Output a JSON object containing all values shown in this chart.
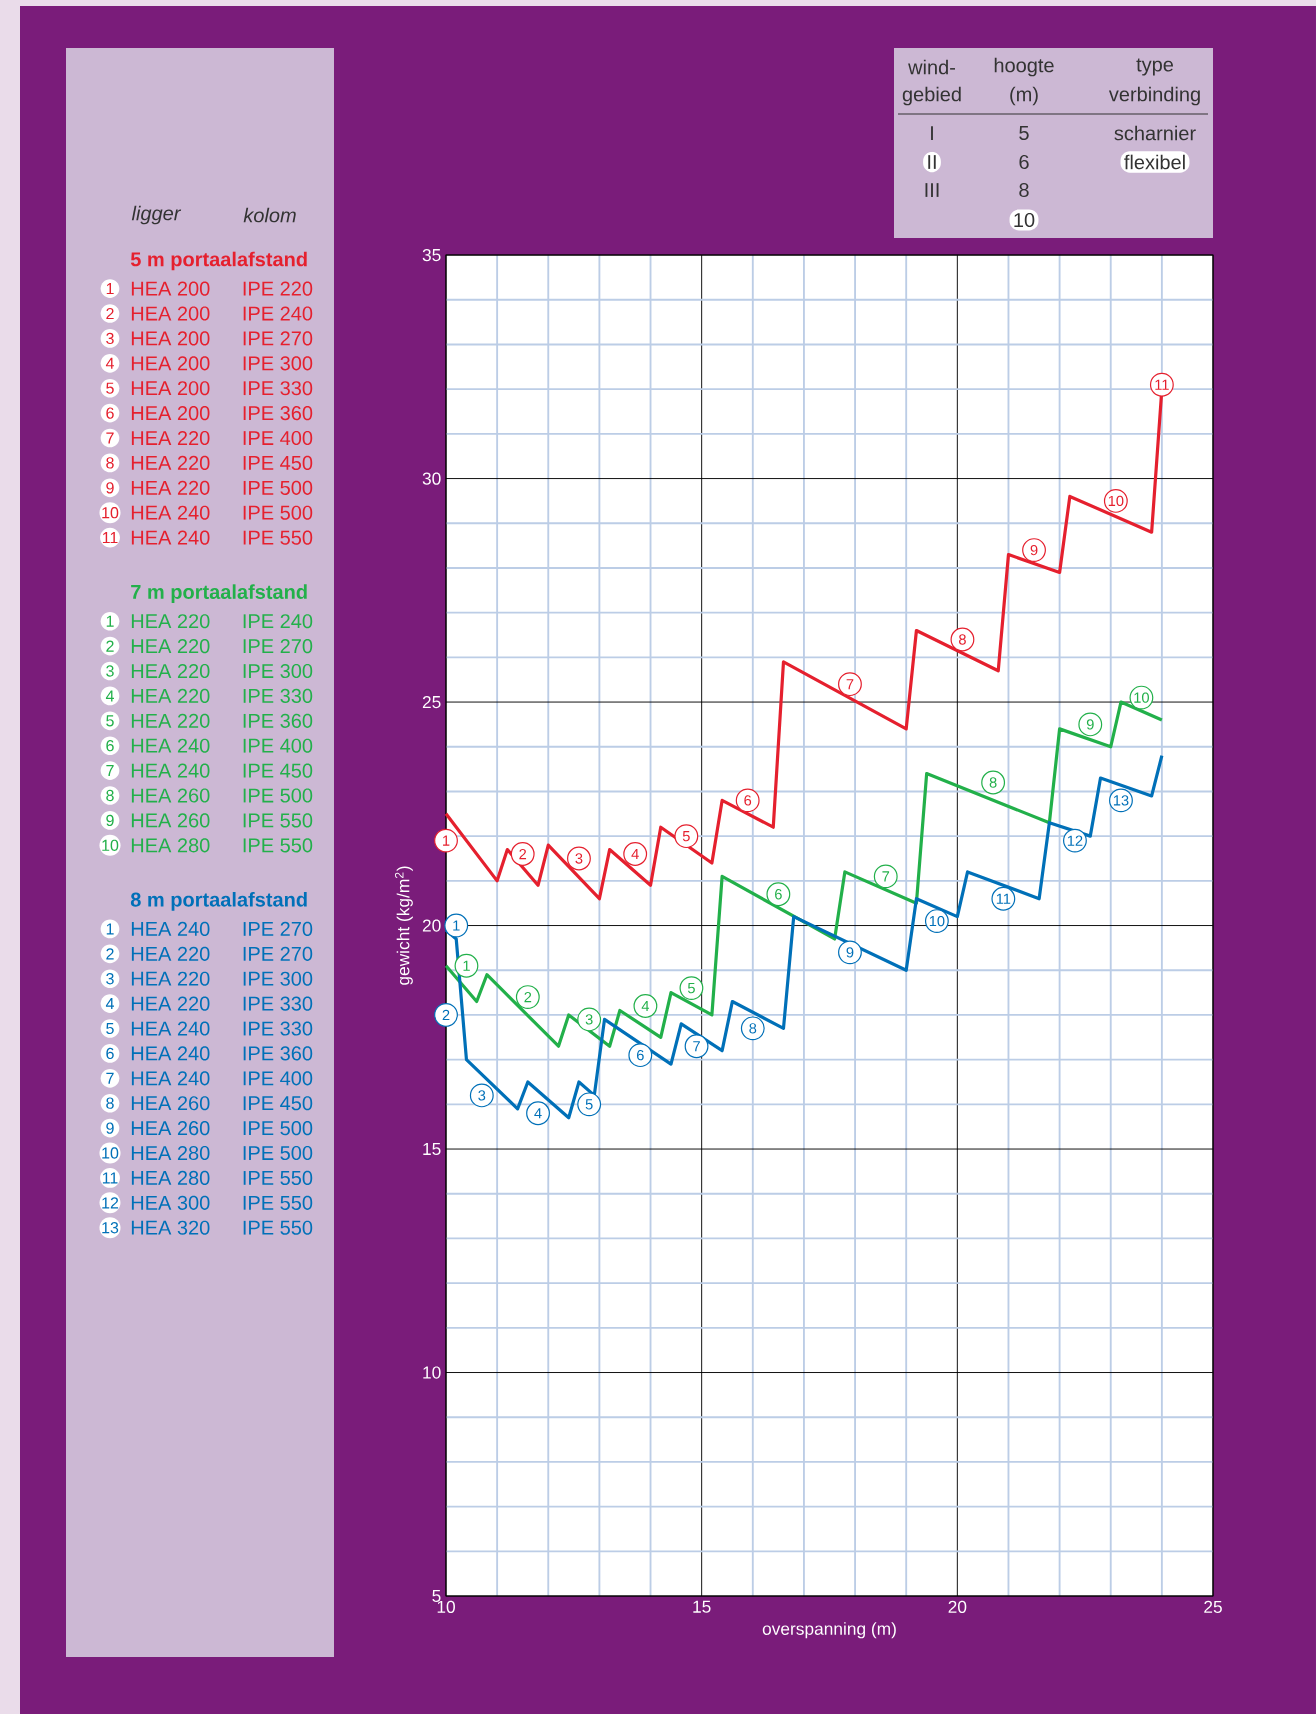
{
  "chart_data": [
    {
      "type": "line",
      "xlabel": "overspanning (m)",
      "ylabel": "gewicht (kg/m$^{2}$)",
      "xlim": [
        10,
        25
      ],
      "ylim": [
        5,
        35
      ],
      "xticks": [
        10,
        {
          "value": 11,
          "label": null
        },
        {
          "value": 12,
          "label": null
        },
        {
          "value": 13,
          "label": null
        },
        {
          "value": 14,
          "label": null
        },
        15,
        {
          "value": 16,
          "label": null
        },
        {
          "value": 17,
          "label": null
        },
        {
          "value": 18,
          "label": null
        },
        {
          "value": 19,
          "label": null
        },
        20,
        {
          "value": 21,
          "label": null
        },
        {
          "value": 22,
          "label": null
        },
        {
          "value": 23,
          "label": null
        },
        {
          "value": 24,
          "label": null
        },
        25
      ],
      "yticks": [
        5,
        {
          "value": 6,
          "label": null
        },
        {
          "value": 7,
          "label": null
        },
        {
          "value": 8,
          "label": null
        },
        {
          "value": 9,
          "label": null
        },
        10,
        {
          "value": 11,
          "label": null
        },
        {
          "value": 12,
          "label": null
        },
        {
          "value": 13,
          "label": null
        },
        {
          "value": 14,
          "label": null
        },
        15,
        {
          "value": 16,
          "label": null
        },
        {
          "value": 17,
          "label": null
        },
        {
          "value": 18,
          "label": null
        },
        {
          "value": 19,
          "label": null
        },
        20,
        {
          "value": 21,
          "label": null
        },
        {
          "value": 22,
          "label": null
        },
        {
          "value": 23,
          "label": null
        },
        {
          "value": 24,
          "label": null
        },
        25,
        {
          "value": 26,
          "label": null
        },
        {
          "value": 27,
          "label": null
        },
        {
          "value": 28,
          "label": null
        },
        {
          "value": 29,
          "label": null
        },
        30,
        {
          "value": 31,
          "label": null
        },
        {
          "value": 32,
          "label": null
        },
        {
          "value": 33,
          "label": null
        },
        {
          "value": 34,
          "label": null
        },
        35
      ],
      "grid": true,
      "legend": "left",
      "series": [
        {
          "name": "5 m portaalafstand",
          "color": "#e5202e",
          "x": [
            10,
            11,
            11.2,
            11.8,
            12,
            13,
            13.2,
            14,
            14.2,
            15.2,
            15.4,
            16.4,
            16.6,
            19,
            19.2,
            20.8,
            21,
            22,
            22.2,
            23.8,
            24
          ],
          "values": [
            22.5,
            21,
            21.7,
            20.9,
            21.8,
            20.6,
            21.7,
            20.9,
            22.2,
            21.4,
            22.8,
            22.2,
            25.9,
            24.4,
            26.6,
            25.7,
            28.3,
            27.9,
            29.6,
            28.8,
            32.0
          ]
        },
        {
          "name": "7 m portaalafstand",
          "color": "#22b04a",
          "x": [
            10,
            10.6,
            10.8,
            12.2,
            12.4,
            13.2,
            13.4,
            14.2,
            14.4,
            15.2,
            15.4,
            17.6,
            17.8,
            19.2,
            19.4,
            21.8,
            22,
            23,
            23.2,
            24
          ],
          "values": [
            19.1,
            18.3,
            18.9,
            17.3,
            18,
            17.3,
            18.1,
            17.5,
            18.5,
            18,
            21.1,
            19.7,
            21.2,
            20.5,
            23.4,
            22.3,
            24.4,
            24,
            25,
            24.6
          ]
        },
        {
          "name": "8 m portaalafstand",
          "color": "#0070b8",
          "x": [
            10,
            10.2,
            10.4,
            11.4,
            11.6,
            12.4,
            12.6,
            12.9,
            13.1,
            14.4,
            14.6,
            15.4,
            15.6,
            16.6,
            16.8,
            19,
            19.2,
            20,
            20.2,
            21.6,
            21.8,
            22.6,
            22.8,
            23.8,
            24
          ],
          "values": [
            19.9,
            19.7,
            17,
            15.9,
            16.5,
            15.7,
            16.5,
            16.2,
            17.9,
            16.9,
            17.8,
            17.2,
            18.3,
            17.7,
            20.2,
            19,
            20.6,
            20.2,
            21.2,
            20.6,
            22.3,
            22,
            23.3,
            22.9,
            23.8
          ]
        }
      ],
      "annotations": [
        "ligger",
        "kolom",
        {
          "text": "1",
          "x": 10.0,
          "y": 21.9
        },
        {
          "text": "2",
          "x": 11.5,
          "y": 21.6
        },
        {
          "text": "3",
          "x": 12.6,
          "y": 21.5
        },
        {
          "text": "4",
          "x": 13.7,
          "y": 21.6
        },
        {
          "text": "5",
          "x": 14.7,
          "y": 22.0
        },
        {
          "text": "6",
          "x": 15.9,
          "y": 22.8
        },
        {
          "text": "7",
          "x": 17.9,
          "y": 25.4
        },
        {
          "text": "8",
          "x": 20.1,
          "y": 26.4
        },
        {
          "text": "9",
          "x": 21.5,
          "y": 28.4
        },
        {
          "text": "10",
          "x": 23.1,
          "y": 29.5
        },
        {
          "text": "11",
          "x": 24.0,
          "y": 32.1
        },
        "1",
        "HEA 200",
        "IPE 220",
        "2",
        "HEA 200",
        "IPE 240",
        "3",
        "HEA 200",
        "IPE 270",
        "4",
        "HEA 200",
        "IPE 300",
        "5",
        "HEA 200",
        "IPE 330",
        "6",
        "HEA 200",
        "IPE 360",
        "7",
        "HEA 220",
        "IPE 400",
        "8",
        "HEA 220",
        "IPE 450",
        "9",
        "HEA 220",
        "IPE 500",
        "10",
        "HEA 240",
        "IPE 500",
        "11",
        "HEA 240",
        "IPE 550",
        {
          "text": "1",
          "x": 10.4,
          "y": 19.1
        },
        {
          "text": "2",
          "x": 11.6,
          "y": 18.4
        },
        {
          "text": "3",
          "x": 12.8,
          "y": 17.9
        },
        {
          "text": "4",
          "x": 13.9,
          "y": 18.2
        },
        {
          "text": "5",
          "x": 14.8,
          "y": 18.6
        },
        {
          "text": "6",
          "x": 16.5,
          "y": 20.7
        },
        {
          "text": "7",
          "x": 18.6,
          "y": 21.1
        },
        {
          "text": "8",
          "x": 20.7,
          "y": 23.2
        },
        {
          "text": "9",
          "x": 22.6,
          "y": 24.5
        },
        {
          "text": "10",
          "x": 23.6,
          "y": 25.1
        },
        "1",
        "HEA 220",
        "IPE 240",
        "2",
        "HEA 220",
        "IPE 270",
        "3",
        "HEA 220",
        "IPE 300",
        "4",
        "HEA 220",
        "IPE 330",
        "5",
        "HEA 220",
        "IPE 360",
        "6",
        "HEA 240",
        "IPE 400",
        "7",
        "HEA 240",
        "IPE 450",
        "8",
        "HEA 260",
        "IPE 500",
        "9",
        "HEA 260",
        "IPE 550",
        "10",
        "HEA 280",
        "IPE 550",
        {
          "text": "1",
          "x": 10.2,
          "y": 20.0
        },
        {
          "text": "2",
          "x": 10.0,
          "y": 18.0
        },
        {
          "text": "3",
          "x": 10.7,
          "y": 16.2
        },
        {
          "text": "4",
          "x": 11.8,
          "y": 15.8
        },
        {
          "text": "5",
          "x": 12.8,
          "y": 16.0
        },
        {
          "text": "6",
          "x": 13.8,
          "y": 17.1
        },
        {
          "text": "7",
          "x": 14.9,
          "y": 17.3
        },
        {
          "text": "8",
          "x": 16.0,
          "y": 17.7
        },
        {
          "text": "9",
          "x": 17.9,
          "y": 19.4
        },
        {
          "text": "10",
          "x": 19.6,
          "y": 20.1
        },
        {
          "text": "11",
          "x": 20.9,
          "y": 20.6
        },
        {
          "text": "12",
          "x": 22.3,
          "y": 21.9
        },
        {
          "text": "13",
          "x": 23.2,
          "y": 22.8
        },
        "1",
        "HEA 240",
        "IPE 270",
        "2",
        "HEA 220",
        "IPE 270",
        "3",
        "HEA 220",
        "IPE 300",
        "4",
        "HEA 220",
        "IPE 330",
        "5",
        "HEA 240",
        "IPE 330",
        "6",
        "HEA 240",
        "IPE 360",
        "7",
        "HEA 240",
        "IPE 400",
        "8",
        "HEA 260",
        "IPE 450",
        "9",
        "HEA 260",
        "IPE 500",
        "10",
        "HEA 280",
        "IPE 500",
        "11",
        "HEA 280",
        "IPE 550",
        "12",
        "HEA 300",
        "IPE 550",
        "13",
        "HEA 320",
        "IPE 550"
      ]
    },
    {
      "type": "other",
      "annotations": [
        "wind-",
        "gebied",
        "hoogte",
        "(m)",
        "type",
        "verbinding",
        "I",
        "5",
        "scharnier",
        "II",
        "6",
        "flexibel",
        "III",
        "8",
        "10"
      ]
    }
  ]
}
